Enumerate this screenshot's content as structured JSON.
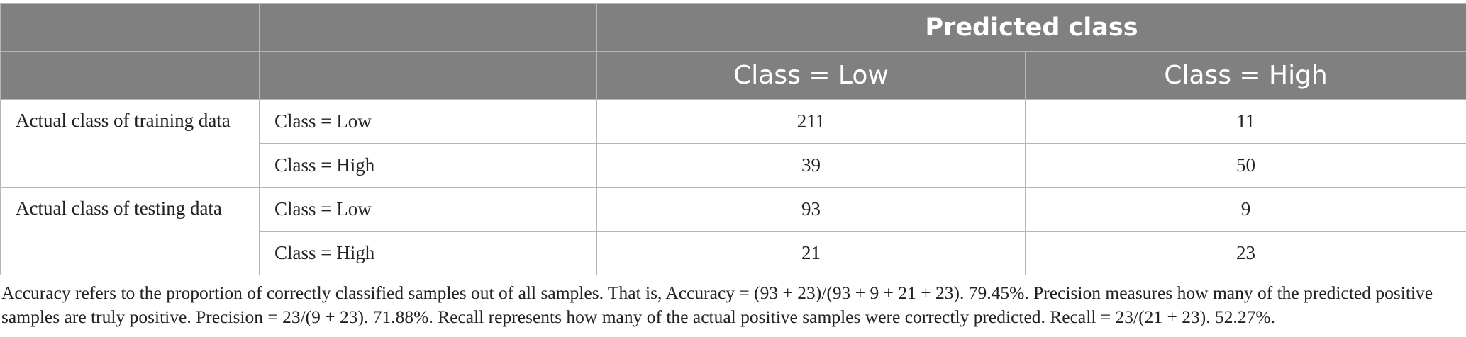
{
  "table": {
    "header": {
      "predicted": "Predicted class",
      "col_low": "Class = Low",
      "col_high": "Class = High"
    },
    "groups": [
      {
        "label": "Actual class of training data",
        "rows": [
          {
            "label": "Class = Low",
            "low": "211",
            "high": "11"
          },
          {
            "label": "Class = High",
            "low": "39",
            "high": "50"
          }
        ]
      },
      {
        "label": "Actual class of testing data",
        "rows": [
          {
            "label": "Class = Low",
            "low": "93",
            "high": "9"
          },
          {
            "label": "Class = High",
            "low": "21",
            "high": "23"
          }
        ]
      }
    ]
  },
  "footnote": "Accuracy refers to the proportion of correctly classified samples out of all samples. That is, Accuracy = (93 + 23)/(93 + 9 + 21 + 23). 79.45%. Precision measures how many of the predicted positive samples are truly positive. Precision = 23/(9 + 23). 71.88%. Recall represents how many of the actual positive samples were correctly predicted. Recall = 23/(21 + 23). 52.27%."
}
